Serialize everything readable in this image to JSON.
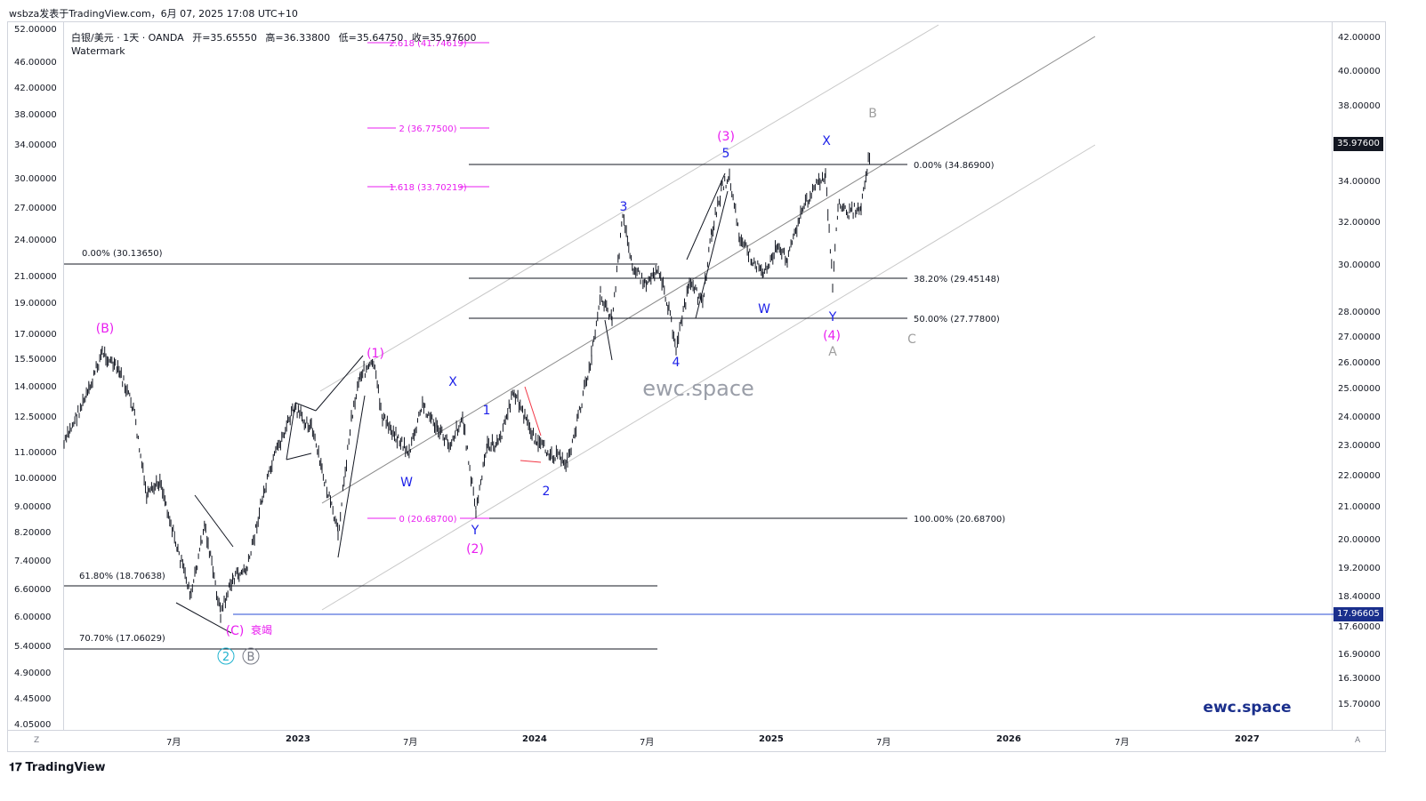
{
  "header": {
    "text": "wsbza发表于TradingView.com，6月 07, 2025 17:08 UTC+10"
  },
  "info": {
    "symbol": "白银/美元 · 1天 · OANDA",
    "open": "开=35.65550",
    "high": "高=36.33800",
    "low": "低=35.64750",
    "close": "收=35.97600",
    "watermark": "Watermark"
  },
  "footer": {
    "logo_text": "TradingView",
    "logo_mark": "𝟏𝟕"
  },
  "axis_buttons": {
    "left": "Z",
    "right": "A"
  },
  "left_axis_ticks": [
    "52.00000",
    "46.00000",
    "42.00000",
    "38.00000",
    "34.00000",
    "30.00000",
    "27.00000",
    "24.00000",
    "21.00000",
    "19.00000",
    "17.00000",
    "15.50000",
    "14.00000",
    "12.50000",
    "11.00000",
    "10.00000",
    "9.00000",
    "8.20000",
    "7.40000",
    "6.60000",
    "6.00000",
    "5.40000",
    "4.90000",
    "4.45000",
    "4.05000"
  ],
  "right_axis_ticks": [
    "42.00000",
    "40.00000",
    "38.00000",
    "34.00000",
    "32.00000",
    "30.00000",
    "28.00000",
    "27.00000",
    "26.00000",
    "25.00000",
    "24.00000",
    "23.00000",
    "22.00000",
    "21.00000",
    "20.00000",
    "19.20000",
    "18.40000",
    "17.60000",
    "16.90000",
    "16.30000",
    "15.70000"
  ],
  "time_ticks": [
    "7月",
    "2023",
    "7月",
    "2024",
    "7月",
    "2025",
    "7月",
    "2026",
    "7月",
    "2027"
  ],
  "price_tags": {
    "last": "35.97600",
    "line": "17.96605"
  },
  "colors": {
    "magenta": "#e91ef0",
    "blue": "#1e22e8",
    "grey": "#9e9e9e",
    "cyan": "#21b3cf",
    "line_blue": "#2a4ed4",
    "tag_dark": "#131722",
    "tag_blue": "#1a2f8c"
  },
  "chart_data": {
    "type": "candlestick",
    "symbol": "白银/美元",
    "timeframe": "1天",
    "scale": "log",
    "period": {
      "start": "2022",
      "end": "2025-06-06"
    },
    "approx_path": [
      {
        "t": "2022-01",
        "price": 22.5
      },
      {
        "t": "2022-03",
        "price": 26.5
      },
      {
        "t": "2022-05",
        "price": 22.0
      },
      {
        "t": "2022-07",
        "price": 18.5
      },
      {
        "t": "2022-09",
        "price": 18.0
      },
      {
        "t": "2022-11",
        "price": 21.5
      },
      {
        "t": "2023-01",
        "price": 24.0
      },
      {
        "t": "2023-03",
        "price": 20.0
      },
      {
        "t": "2023-05",
        "price": 26.0
      },
      {
        "t": "2023-07",
        "price": 24.5
      },
      {
        "t": "2023-09",
        "price": 22.5
      },
      {
        "t": "2023-10",
        "price": 20.8
      },
      {
        "t": "2023-12",
        "price": 24.5
      },
      {
        "t": "2024-02",
        "price": 22.0
      },
      {
        "t": "2024-04",
        "price": 27.5
      },
      {
        "t": "2024-05",
        "price": 32.0
      },
      {
        "t": "2024-08",
        "price": 27.0
      },
      {
        "t": "2024-10",
        "price": 34.5
      },
      {
        "t": "2024-12",
        "price": 29.5
      },
      {
        "t": "2025-03",
        "price": 34.0
      },
      {
        "t": "2025-04",
        "price": 28.5
      },
      {
        "t": "2025-06",
        "price": 35.97
      }
    ],
    "fib_retracements": [
      {
        "label": "0.00% (34.86900)"
      },
      {
        "label": "38.20% (29.45148)"
      },
      {
        "label": "50.00% (27.77800)"
      },
      {
        "label": "100.00% (20.68700)"
      },
      {
        "label": "0.00% (30.13650)"
      },
      {
        "label": "61.80% (18.70638)"
      },
      {
        "label": "70.70% (17.06029)"
      }
    ],
    "fib_extensions": [
      {
        "label": "2.618 (41.74619)"
      },
      {
        "label": "2 (36.77500)"
      },
      {
        "label": "1.618 (33.70219)"
      },
      {
        "label": "0 (20.68700)"
      }
    ],
    "wave_labels": {
      "magenta": [
        "(B)",
        "(1)",
        "(2)",
        "(3)",
        "(4)",
        "(C)",
        "衰竭"
      ],
      "blue": [
        "W",
        "X",
        "Y",
        "1",
        "2",
        "3",
        "4",
        "5",
        "X",
        "W",
        "Y"
      ],
      "grey": [
        "A",
        "B",
        "C"
      ],
      "circled": [
        "2",
        "B"
      ]
    },
    "horizontal_line": "17.96605",
    "watermarks": [
      "ewc.space",
      "ewc.space"
    ]
  }
}
